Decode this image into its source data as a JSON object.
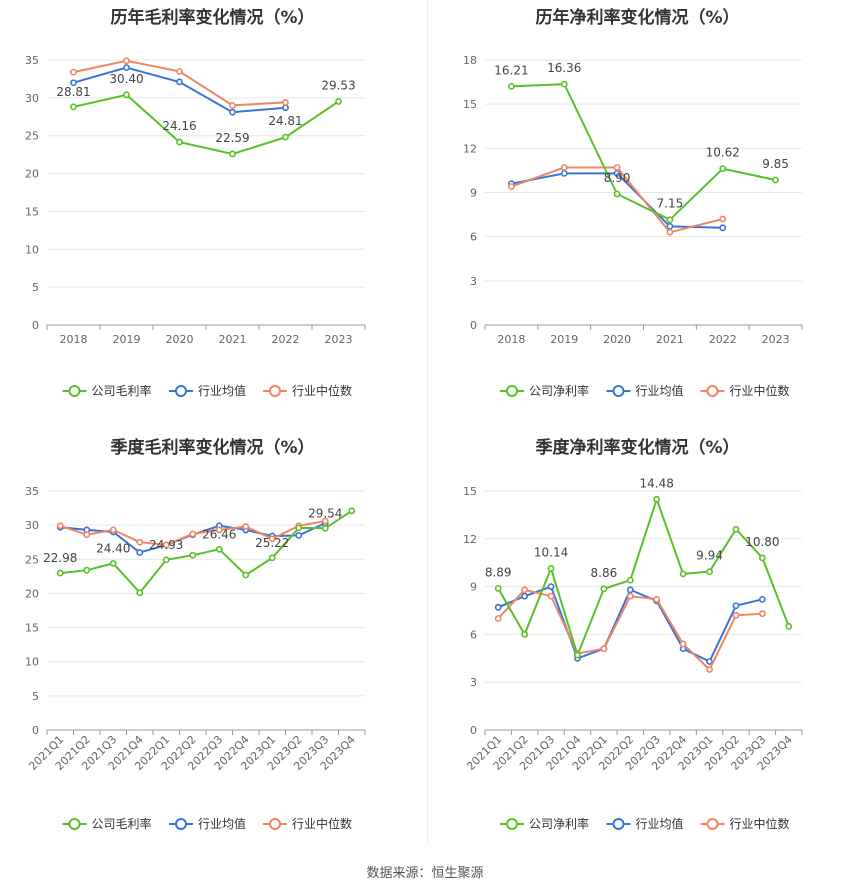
{
  "source_label": "数据来源：恒生聚源",
  "colors": {
    "company": "#58c126",
    "industry_avg": "#3a73d8",
    "industry_median": "#ee8563"
  },
  "chart_data": [
    {
      "type": "line",
      "title": "历年毛利率变化情况（%）",
      "categories": [
        "2018",
        "2019",
        "2020",
        "2021",
        "2022",
        "2023"
      ],
      "ylim": [
        0,
        35
      ],
      "yticks": [
        "0",
        "5",
        "10",
        "15",
        "20",
        "25",
        "30",
        "35"
      ],
      "grid": true,
      "legend_position": "bottom",
      "series": [
        {
          "name": "公司毛利率",
          "values": [
            28.81,
            30.4,
            24.16,
            22.59,
            24.81,
            29.53
          ]
        },
        {
          "name": "行业均值",
          "values": [
            32.0,
            34.0,
            32.1,
            28.1,
            28.7,
            null
          ]
        },
        {
          "name": "行业中位数",
          "values": [
            33.4,
            34.9,
            33.5,
            29.0,
            29.4,
            null
          ]
        }
      ],
      "data_labels": [
        {
          "index": 0,
          "text": "28.81"
        },
        {
          "index": 1,
          "text": "30.40"
        },
        {
          "index": 2,
          "text": "24.16"
        },
        {
          "index": 3,
          "text": "22.59"
        },
        {
          "index": 4,
          "text": "24.81"
        },
        {
          "index": 5,
          "text": "29.53"
        }
      ]
    },
    {
      "type": "line",
      "title": "历年净利率变化情况（%）",
      "categories": [
        "2018",
        "2019",
        "2020",
        "2021",
        "2022",
        "2023"
      ],
      "ylim": [
        0,
        18
      ],
      "yticks": [
        "0",
        "3",
        "6",
        "9",
        "12",
        "15",
        "18"
      ],
      "grid": true,
      "legend_position": "bottom",
      "series": [
        {
          "name": "公司净利率",
          "values": [
            16.21,
            16.36,
            8.9,
            7.15,
            10.62,
            9.85
          ]
        },
        {
          "name": "行业均值",
          "values": [
            9.6,
            10.3,
            10.3,
            6.7,
            6.6,
            null
          ]
        },
        {
          "name": "行业中位数",
          "values": [
            9.4,
            10.7,
            10.7,
            6.3,
            7.2,
            null
          ]
        }
      ],
      "data_labels": [
        {
          "index": 0,
          "text": "16.21"
        },
        {
          "index": 1,
          "text": "16.36"
        },
        {
          "index": 2,
          "text": "8.90"
        },
        {
          "index": 3,
          "text": "7.15"
        },
        {
          "index": 4,
          "text": "10.62"
        },
        {
          "index": 5,
          "text": "9.85"
        }
      ]
    },
    {
      "type": "line",
      "title": "季度毛利率变化情况（%）",
      "categories": [
        "2021Q1",
        "2021Q2",
        "2021Q3",
        "2021Q4",
        "2022Q1",
        "2022Q2",
        "2022Q3",
        "2022Q4",
        "2023Q1",
        "2023Q2",
        "2023Q3",
        "2023Q4"
      ],
      "ylim": [
        0,
        35
      ],
      "yticks": [
        "0",
        "5",
        "10",
        "15",
        "20",
        "25",
        "30",
        "35"
      ],
      "grid": true,
      "legend_position": "bottom",
      "series": [
        {
          "name": "公司毛利率",
          "values": [
            22.98,
            23.4,
            24.4,
            20.1,
            24.93,
            25.6,
            26.46,
            22.7,
            25.22,
            29.6,
            29.54,
            32.1
          ]
        },
        {
          "name": "行业均值",
          "values": [
            29.7,
            29.3,
            29.0,
            26.0,
            27.1,
            28.6,
            29.9,
            29.3,
            28.4,
            28.5,
            30.3,
            null
          ]
        },
        {
          "name": "行业中位数",
          "values": [
            29.9,
            28.6,
            29.3,
            27.5,
            27.1,
            28.7,
            29.3,
            29.8,
            28.0,
            29.9,
            30.6,
            null
          ]
        }
      ],
      "data_labels": [
        {
          "index": 0,
          "text": "22.98"
        },
        {
          "index": 2,
          "text": "24.40"
        },
        {
          "index": 4,
          "text": "24.93"
        },
        {
          "index": 6,
          "text": "26.46"
        },
        {
          "index": 8,
          "text": "25.22"
        },
        {
          "index": 10,
          "text": "29.54"
        }
      ]
    },
    {
      "type": "line",
      "title": "季度净利率变化情况（%）",
      "categories": [
        "2021Q1",
        "2021Q2",
        "2021Q3",
        "2021Q4",
        "2022Q1",
        "2022Q2",
        "2022Q3",
        "2022Q4",
        "2023Q1",
        "2023Q2",
        "2023Q3",
        "2023Q4"
      ],
      "ylim": [
        0,
        15
      ],
      "yticks": [
        "0",
        "3",
        "6",
        "9",
        "12",
        "15"
      ],
      "grid": true,
      "legend_position": "bottom",
      "series": [
        {
          "name": "公司净利率",
          "values": [
            8.89,
            6.0,
            10.14,
            4.7,
            8.86,
            9.4,
            14.48,
            9.8,
            9.94,
            12.6,
            10.8,
            6.5
          ]
        },
        {
          "name": "行业均值",
          "values": [
            7.7,
            8.4,
            9.0,
            4.5,
            5.1,
            8.8,
            8.1,
            5.1,
            4.3,
            7.8,
            8.2,
            null
          ]
        },
        {
          "name": "行业中位数",
          "values": [
            7.0,
            8.8,
            8.4,
            4.8,
            5.1,
            8.4,
            8.2,
            5.4,
            3.8,
            7.2,
            7.3,
            null
          ]
        }
      ],
      "data_labels": [
        {
          "index": 0,
          "text": "8.89"
        },
        {
          "index": 2,
          "text": "10.14"
        },
        {
          "index": 4,
          "text": "8.86"
        },
        {
          "index": 6,
          "text": "14.48"
        },
        {
          "index": 8,
          "text": "9.94"
        },
        {
          "index": 10,
          "text": "10.80"
        }
      ]
    }
  ]
}
